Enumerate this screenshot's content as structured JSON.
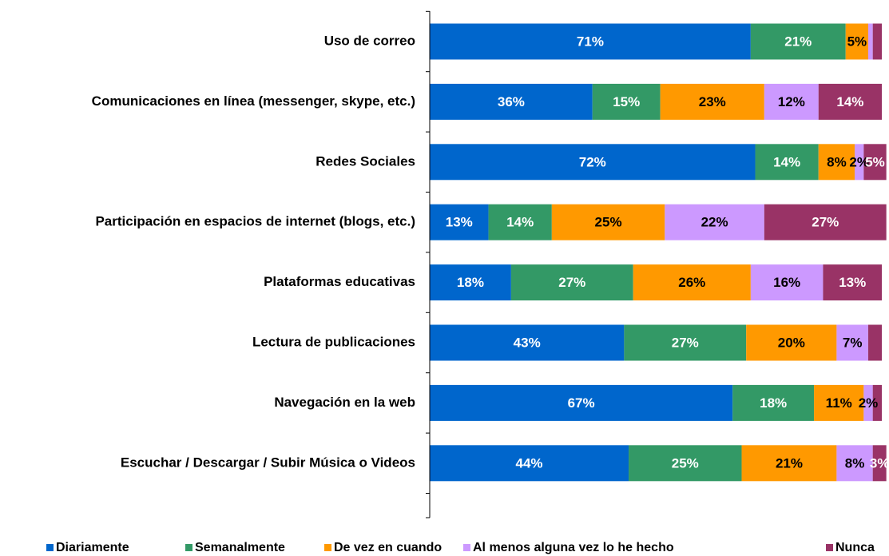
{
  "chart_data": {
    "type": "stacked_bar_horizontal",
    "categories": [
      "Uso de correo",
      "Comunicaciones en línea (messenger, skype, etc.)",
      "Redes Sociales",
      "Participación en espacios de internet (blogs, etc.)",
      "Plataformas educativas",
      "Lectura de publicaciones",
      "Navegación en la web",
      "Escuchar / Descargar / Subir Música o Videos"
    ],
    "xlim": [
      0,
      100
    ],
    "legend": "bottom",
    "series": [
      {
        "name": "Diariamente",
        "color": "#0066cc",
        "label_color": "#ffffff",
        "values": [
          71,
          36,
          72,
          13,
          18,
          43,
          67,
          44
        ],
        "value_labels": [
          "71%",
          "36%",
          "72%",
          "13%",
          "18%",
          "43%",
          "67%",
          "44%"
        ]
      },
      {
        "name": "Semanalmente",
        "color": "#339966",
        "label_color": "#ffffff",
        "values": [
          21,
          15,
          14,
          14,
          27,
          27,
          18,
          25
        ],
        "value_labels": [
          "21%",
          "15%",
          "14%",
          "14%",
          "27%",
          "27%",
          "18%",
          "25%"
        ]
      },
      {
        "name": "De vez en cuando",
        "color": "#ff9900",
        "label_color": "#000000",
        "values": [
          5,
          23,
          8,
          25,
          26,
          20,
          11,
          21
        ],
        "value_labels": [
          "5%",
          "23%",
          "8%",
          "25%",
          "26%",
          "20%",
          "11%",
          "21%"
        ]
      },
      {
        "name": "Al menos alguna vez lo he hecho",
        "color": "#cc99ff",
        "label_color": "#000000",
        "values": [
          1,
          12,
          2,
          22,
          16,
          7,
          2,
          8
        ],
        "value_labels": [
          null,
          "12%",
          "2%",
          "22%",
          "16%",
          "7%",
          "2%",
          "8%"
        ]
      },
      {
        "name": "Nunca",
        "color": "#993366",
        "label_color": "#ffffff",
        "values": [
          2,
          14,
          5,
          27,
          13,
          3,
          2,
          3
        ],
        "value_labels": [
          null,
          "14%",
          "5%",
          "27%",
          "13%",
          null,
          null,
          "3%"
        ]
      }
    ]
  }
}
